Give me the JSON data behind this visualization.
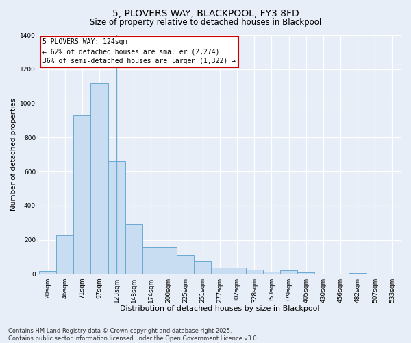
{
  "title": "5, PLOVERS WAY, BLACKPOOL, FY3 8FD",
  "subtitle": "Size of property relative to detached houses in Blackpool",
  "xlabel": "Distribution of detached houses by size in Blackpool",
  "ylabel": "Number of detached properties",
  "categories": [
    "20sqm",
    "46sqm",
    "71sqm",
    "97sqm",
    "123sqm",
    "148sqm",
    "174sqm",
    "200sqm",
    "225sqm",
    "251sqm",
    "277sqm",
    "302sqm",
    "328sqm",
    "353sqm",
    "379sqm",
    "405sqm",
    "430sqm",
    "456sqm",
    "482sqm",
    "507sqm",
    "533sqm"
  ],
  "values": [
    18,
    228,
    930,
    1120,
    660,
    290,
    160,
    160,
    110,
    75,
    40,
    40,
    25,
    15,
    22,
    10,
    0,
    0,
    8,
    0,
    0
  ],
  "bar_color": "#c9ddf2",
  "bar_edge_color": "#6aaad4",
  "property_line_index": 4,
  "annotation_line1": "5 PLOVERS WAY: 124sqm",
  "annotation_line2": "← 62% of detached houses are smaller (2,274)",
  "annotation_line3": "36% of semi-detached houses are larger (1,322) →",
  "annotation_box_facecolor": "#ffffff",
  "annotation_box_edgecolor": "#cc0000",
  "footer_line1": "Contains HM Land Registry data © Crown copyright and database right 2025.",
  "footer_line2": "Contains public sector information licensed under the Open Government Licence v3.0.",
  "background_color": "#e8eef8",
  "plot_background_color": "#e8eef8",
  "grid_color": "#ffffff",
  "ylim": [
    0,
    1400
  ],
  "title_fontsize": 10,
  "subtitle_fontsize": 8.5,
  "xlabel_fontsize": 8,
  "ylabel_fontsize": 7.5,
  "tick_fontsize": 6.5,
  "annotation_fontsize": 7,
  "footer_fontsize": 6
}
